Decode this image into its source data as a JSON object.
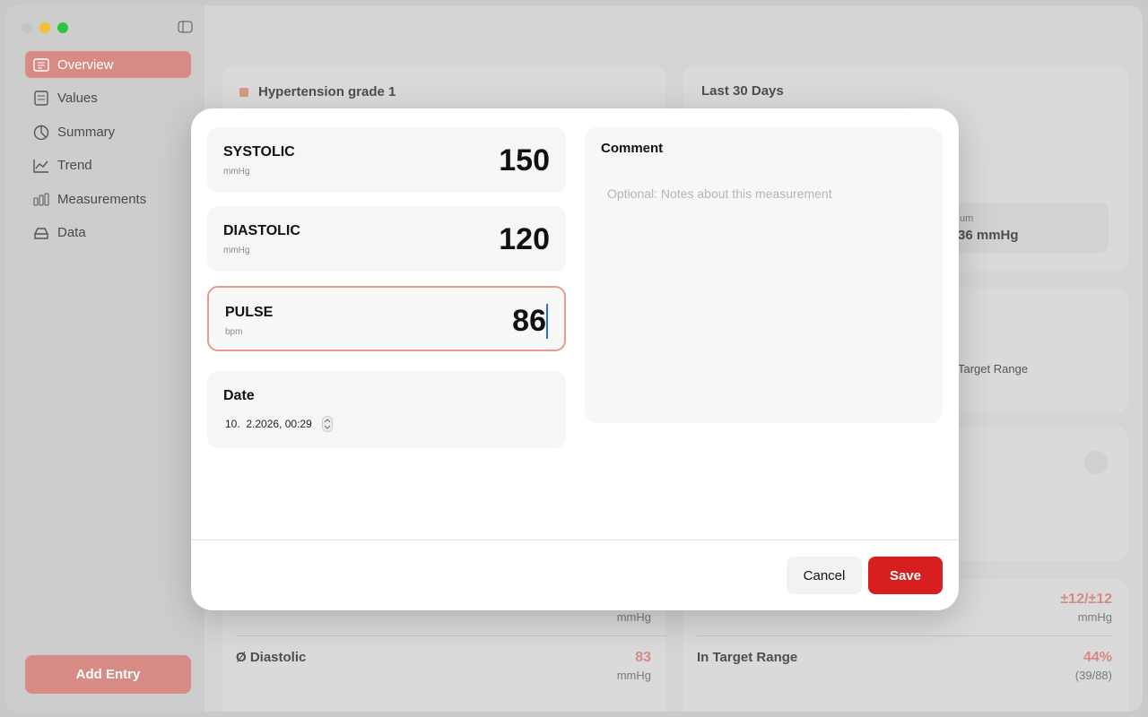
{
  "sidebar": {
    "items": [
      "Overview",
      "Values",
      "Summary",
      "Trend",
      "Measurements",
      "Data"
    ],
    "add_button": "Add Entry"
  },
  "background": {
    "status": "Hypertension grade 1",
    "period_title": "Last 30 Days",
    "max_label": "um",
    "max_value": "36 mmHg",
    "target_label": "Target Range",
    "stats": [
      {
        "label": "Ø Diastolic",
        "value": "83",
        "unit": "mmHg"
      },
      {
        "label": "In Target Range",
        "value": "44%",
        "unit": "(39/88)"
      }
    ],
    "top_units": [
      "mmHg",
      "mmHg"
    ],
    "variation": "±12/±12"
  },
  "dialog": {
    "fields": [
      {
        "label": "SYSTOLIC",
        "unit": "mmHg",
        "value": 150
      },
      {
        "label": "DIASTOLIC",
        "unit": "mmHg",
        "value": 120
      },
      {
        "label": "PULSE",
        "unit": "bpm",
        "value": 86
      }
    ],
    "date": {
      "label": "Date",
      "value": "10.  2.2026, 00:29"
    },
    "comment": {
      "label": "Comment",
      "placeholder": "Optional: Notes about this measurement"
    },
    "buttons": {
      "cancel": "Cancel",
      "save": "Save"
    }
  }
}
